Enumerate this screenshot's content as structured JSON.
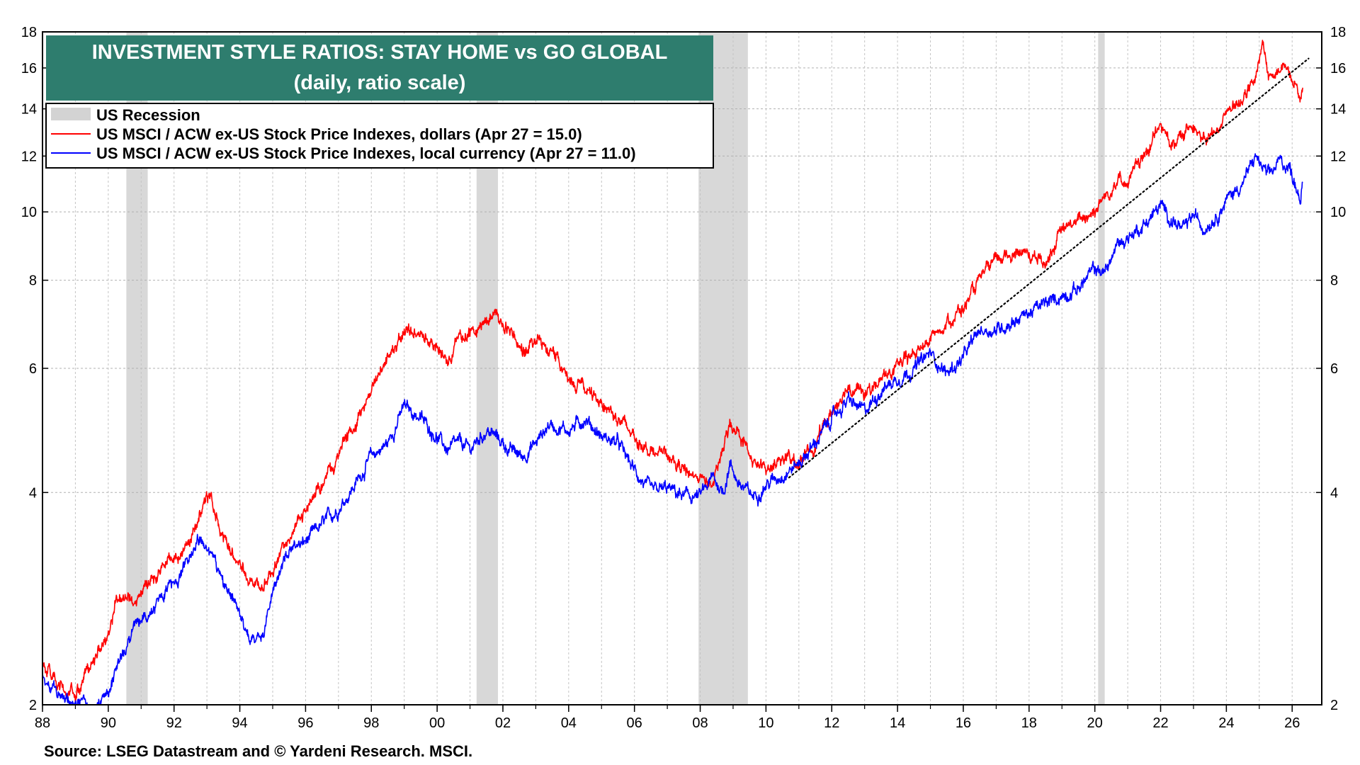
{
  "chart_data": {
    "type": "line",
    "title": "INVESTMENT STYLE RATIOS: STAY HOME vs GO GLOBAL",
    "subtitle": "(daily, ratio scale)",
    "source": "Source: LSEG Datastream and © Yardeni Research. MSCI.",
    "y_scale": "log",
    "ylim": [
      2,
      18
    ],
    "xlim": [
      1988,
      2026.9
    ],
    "y_ticks": [
      2,
      4,
      6,
      8,
      10,
      12,
      14,
      16,
      18
    ],
    "y_tick_labels": [
      "2",
      "4",
      "6",
      "8",
      "10",
      "12",
      "14",
      "16",
      "18"
    ],
    "x_ticks": [
      1988,
      1990,
      1992,
      1994,
      1996,
      1998,
      2000,
      2002,
      2004,
      2006,
      2008,
      2010,
      2012,
      2014,
      2016,
      2018,
      2020,
      2022,
      2024,
      2026
    ],
    "x_tick_labels": [
      "88",
      "90",
      "92",
      "94",
      "96",
      "98",
      "00",
      "02",
      "04",
      "06",
      "08",
      "10",
      "12",
      "14",
      "16",
      "18",
      "20",
      "22",
      "24",
      "26"
    ],
    "grid": true,
    "legend": {
      "placement": "top-left",
      "entries": [
        {
          "label": "US Recession",
          "color": "#d3d3d3",
          "kind": "band"
        },
        {
          "label": "US MSCI / ACW ex-US Stock Price Indexes, dollars (Apr 27 = 15.0)",
          "color": "#ff0000",
          "kind": "line"
        },
        {
          "label": "US MSCI / ACW ex-US Stock Price Indexes, local currency (Apr 27 = 11.0)",
          "color": "#0000ff",
          "kind": "line"
        }
      ]
    },
    "recessions": [
      {
        "start": 1990.55,
        "end": 1991.2
      },
      {
        "start": 2001.2,
        "end": 2001.85
      },
      {
        "start": 2007.95,
        "end": 2009.45
      },
      {
        "start": 2020.1,
        "end": 2020.3
      }
    ],
    "series": [
      {
        "name": "US MSCI / ACW ex-US Stock Price Indexes, dollars (Apr 27 = 15.0)",
        "color": "#ff0000",
        "points": [
          [
            1988.0,
            2.3
          ],
          [
            1988.5,
            2.1
          ],
          [
            1989.0,
            2.05
          ],
          [
            1989.5,
            2.3
          ],
          [
            1990.0,
            2.5
          ],
          [
            1990.3,
            2.9
          ],
          [
            1990.8,
            2.8
          ],
          [
            1991.3,
            3.0
          ],
          [
            1991.8,
            3.2
          ],
          [
            1992.3,
            3.3
          ],
          [
            1992.7,
            3.6
          ],
          [
            1993.0,
            4.0
          ],
          [
            1993.3,
            3.7
          ],
          [
            1993.7,
            3.3
          ],
          [
            1994.0,
            3.2
          ],
          [
            1994.3,
            3.0
          ],
          [
            1994.7,
            2.95
          ],
          [
            1995.0,
            3.1
          ],
          [
            1995.5,
            3.5
          ],
          [
            1996.0,
            3.8
          ],
          [
            1996.5,
            4.1
          ],
          [
            1997.0,
            4.5
          ],
          [
            1997.5,
            5.0
          ],
          [
            1998.0,
            5.6
          ],
          [
            1998.5,
            6.2
          ],
          [
            1999.0,
            6.8
          ],
          [
            1999.5,
            6.7
          ],
          [
            2000.0,
            6.4
          ],
          [
            2000.3,
            6.2
          ],
          [
            2000.7,
            6.6
          ],
          [
            2001.0,
            6.7
          ],
          [
            2001.5,
            7.0
          ],
          [
            2001.8,
            7.2
          ],
          [
            2002.2,
            6.8
          ],
          [
            2002.6,
            6.3
          ],
          [
            2003.0,
            6.7
          ],
          [
            2003.4,
            6.3
          ],
          [
            2004.0,
            5.9
          ],
          [
            2004.5,
            5.6
          ],
          [
            2005.0,
            5.4
          ],
          [
            2005.5,
            5.1
          ],
          [
            2006.0,
            4.8
          ],
          [
            2006.5,
            4.6
          ],
          [
            2007.0,
            4.5
          ],
          [
            2007.5,
            4.3
          ],
          [
            2008.0,
            4.2
          ],
          [
            2008.4,
            4.1
          ],
          [
            2008.7,
            4.6
          ],
          [
            2008.9,
            5.0
          ],
          [
            2009.2,
            4.9
          ],
          [
            2009.6,
            4.4
          ],
          [
            2010.0,
            4.3
          ],
          [
            2010.5,
            4.5
          ],
          [
            2011.0,
            4.4
          ],
          [
            2011.5,
            4.7
          ],
          [
            2012.0,
            5.2
          ],
          [
            2012.5,
            5.7
          ],
          [
            2013.0,
            5.5
          ],
          [
            2013.5,
            5.8
          ],
          [
            2014.0,
            6.0
          ],
          [
            2014.5,
            6.3
          ],
          [
            2015.0,
            6.6
          ],
          [
            2015.5,
            7.0
          ],
          [
            2016.0,
            7.3
          ],
          [
            2016.5,
            8.0
          ],
          [
            2017.0,
            8.5
          ],
          [
            2017.5,
            8.8
          ],
          [
            2018.0,
            8.7
          ],
          [
            2018.5,
            8.5
          ],
          [
            2019.0,
            9.4
          ],
          [
            2019.5,
            9.7
          ],
          [
            2020.0,
            10.1
          ],
          [
            2020.3,
            10.5
          ],
          [
            2020.7,
            11.2
          ],
          [
            2021.0,
            11.0
          ],
          [
            2021.5,
            12.0
          ],
          [
            2022.0,
            13.2
          ],
          [
            2022.3,
            12.6
          ],
          [
            2022.7,
            12.8
          ],
          [
            2023.0,
            13.5
          ],
          [
            2023.3,
            12.6
          ],
          [
            2023.7,
            13.0
          ],
          [
            2024.0,
            13.8
          ],
          [
            2024.5,
            14.6
          ],
          [
            2024.9,
            15.3
          ],
          [
            2025.1,
            17.3
          ],
          [
            2025.3,
            15.5
          ],
          [
            2025.6,
            15.8
          ],
          [
            2025.9,
            16.0
          ],
          [
            2026.1,
            15.5
          ],
          [
            2026.25,
            14.4
          ],
          [
            2026.32,
            15.0
          ]
        ]
      },
      {
        "name": "US MSCI / ACW ex-US Stock Price Indexes, local currency (Apr 27 = 11.0)",
        "color": "#0000ff",
        "points": [
          [
            1988.0,
            2.2
          ],
          [
            1988.5,
            2.05
          ],
          [
            1989.0,
            2.0
          ],
          [
            1989.5,
            2.0
          ],
          [
            1990.0,
            2.1
          ],
          [
            1990.3,
            2.3
          ],
          [
            1990.8,
            2.6
          ],
          [
            1991.3,
            2.7
          ],
          [
            1991.8,
            2.9
          ],
          [
            1992.3,
            3.1
          ],
          [
            1992.7,
            3.4
          ],
          [
            1993.0,
            3.4
          ],
          [
            1993.3,
            3.2
          ],
          [
            1993.7,
            2.9
          ],
          [
            1994.0,
            2.7
          ],
          [
            1994.3,
            2.5
          ],
          [
            1994.7,
            2.55
          ],
          [
            1995.0,
            2.9
          ],
          [
            1995.5,
            3.3
          ],
          [
            1996.0,
            3.4
          ],
          [
            1996.5,
            3.6
          ],
          [
            1997.0,
            3.8
          ],
          [
            1997.5,
            4.1
          ],
          [
            1998.0,
            4.5
          ],
          [
            1998.5,
            4.7
          ],
          [
            1999.0,
            5.3
          ],
          [
            1999.5,
            5.1
          ],
          [
            2000.0,
            4.8
          ],
          [
            2000.3,
            4.6
          ],
          [
            2000.7,
            4.7
          ],
          [
            2001.0,
            4.6
          ],
          [
            2001.5,
            4.9
          ],
          [
            2001.8,
            4.8
          ],
          [
            2002.2,
            4.6
          ],
          [
            2002.6,
            4.5
          ],
          [
            2003.0,
            4.7
          ],
          [
            2003.4,
            5.0
          ],
          [
            2004.0,
            4.9
          ],
          [
            2004.5,
            5.1
          ],
          [
            2005.0,
            4.8
          ],
          [
            2005.5,
            4.7
          ],
          [
            2006.0,
            4.3
          ],
          [
            2006.5,
            4.0
          ],
          [
            2007.0,
            4.05
          ],
          [
            2007.5,
            3.95
          ],
          [
            2008.0,
            3.95
          ],
          [
            2008.4,
            4.2
          ],
          [
            2008.7,
            4.0
          ],
          [
            2008.9,
            4.4
          ],
          [
            2009.2,
            4.1
          ],
          [
            2009.6,
            3.95
          ],
          [
            2010.0,
            4.1
          ],
          [
            2010.5,
            4.25
          ],
          [
            2011.0,
            4.4
          ],
          [
            2011.5,
            4.7
          ],
          [
            2012.0,
            5.1
          ],
          [
            2012.5,
            5.4
          ],
          [
            2013.0,
            5.2
          ],
          [
            2013.5,
            5.6
          ],
          [
            2014.0,
            5.8
          ],
          [
            2014.5,
            6.0
          ],
          [
            2015.0,
            6.3
          ],
          [
            2015.5,
            5.9
          ],
          [
            2016.0,
            6.2
          ],
          [
            2016.5,
            6.8
          ],
          [
            2017.0,
            6.8
          ],
          [
            2017.5,
            7.0
          ],
          [
            2018.0,
            7.2
          ],
          [
            2018.5,
            7.4
          ],
          [
            2019.0,
            7.6
          ],
          [
            2019.5,
            7.8
          ],
          [
            2020.0,
            8.3
          ],
          [
            2020.3,
            8.2
          ],
          [
            2020.7,
            9.0
          ],
          [
            2021.0,
            9.2
          ],
          [
            2021.5,
            9.6
          ],
          [
            2022.0,
            10.2
          ],
          [
            2022.3,
            9.8
          ],
          [
            2022.7,
            9.4
          ],
          [
            2023.0,
            9.9
          ],
          [
            2023.3,
            9.5
          ],
          [
            2023.7,
            9.9
          ],
          [
            2024.0,
            10.4
          ],
          [
            2024.5,
            11.0
          ],
          [
            2024.9,
            12.0
          ],
          [
            2025.1,
            11.5
          ],
          [
            2025.3,
            11.2
          ],
          [
            2025.6,
            11.8
          ],
          [
            2025.9,
            11.6
          ],
          [
            2026.1,
            11.0
          ],
          [
            2026.25,
            10.5
          ],
          [
            2026.32,
            11.0
          ]
        ]
      }
    ],
    "annotations": [
      {
        "type": "trendline",
        "style": "dotted",
        "color": "#000000",
        "from": [
          2010.7,
          4.2
        ],
        "to": [
          2026.5,
          16.5
        ]
      }
    ]
  }
}
